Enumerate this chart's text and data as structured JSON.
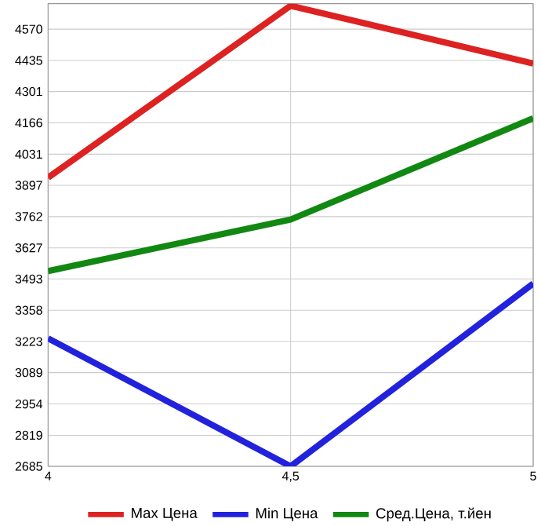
{
  "chart_data": {
    "type": "line",
    "x": [
      4,
      4.5,
      5
    ],
    "series": [
      {
        "name": "Max Цена",
        "color": "#dd2222",
        "values": [
          3930,
          4671,
          4422
        ]
      },
      {
        "name": "Min Цена",
        "color": "#2222dd",
        "values": [
          3237,
          2685,
          3473
        ]
      },
      {
        "name": "Сред.Цена, т.йен",
        "color": "#118811",
        "values": [
          3527,
          3749,
          4186
        ]
      }
    ],
    "xlim": [
      4,
      5
    ],
    "xticks": [
      4,
      {
        "value": 4.5,
        "label": "4,5"
      },
      5
    ],
    "ylim": [
      2685,
      4680
    ],
    "yticks": [
      2685,
      2819,
      2954,
      3089,
      3223,
      3358,
      3493,
      3627,
      3762,
      3897,
      4031,
      4166,
      4301,
      4435,
      4570
    ],
    "grid": true,
    "legend": "bottom",
    "marker": "none",
    "line_style": "solid"
  }
}
